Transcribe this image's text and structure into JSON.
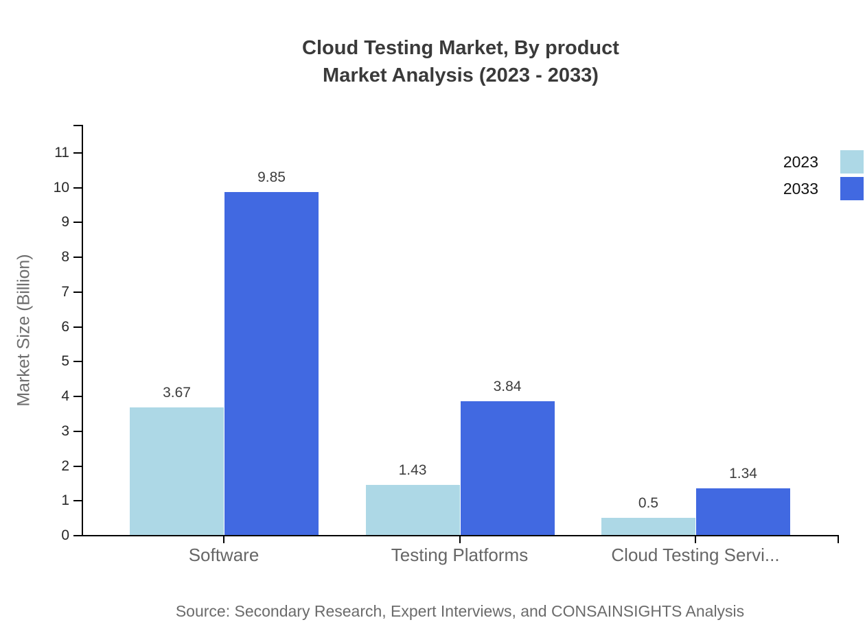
{
  "title": {
    "line1": "Cloud Testing Market, By product",
    "line2": "Market Analysis (2023 - 2033)"
  },
  "source": "Source: Secondary Research, Expert Interviews, and CONSAINSIGHTS Analysis",
  "chart_data": {
    "type": "bar",
    "title": "Cloud Testing Market, By product Market Analysis (2023 - 2033)",
    "categories": [
      "Software",
      "Testing Platforms",
      "Cloud Testing Servi..."
    ],
    "series": [
      {
        "name": "2023",
        "color": "#ADD8E6",
        "values": [
          3.67,
          1.43,
          0.5
        ]
      },
      {
        "name": "2033",
        "color": "#4169E1",
        "values": [
          9.85,
          3.84,
          1.34
        ]
      }
    ],
    "value_labels": [
      [
        "3.67",
        "1.43",
        "0.5"
      ],
      [
        "9.85",
        "3.84",
        "1.34"
      ]
    ],
    "xlabel": "",
    "ylabel": "Market Size (Billion)",
    "ylim": [
      0,
      11
    ],
    "yticks": [
      0,
      1,
      2,
      3,
      4,
      5,
      6,
      7,
      8,
      9,
      10,
      11
    ],
    "grid": false,
    "legend_position": "top-right",
    "axis_color": "#000000"
  }
}
